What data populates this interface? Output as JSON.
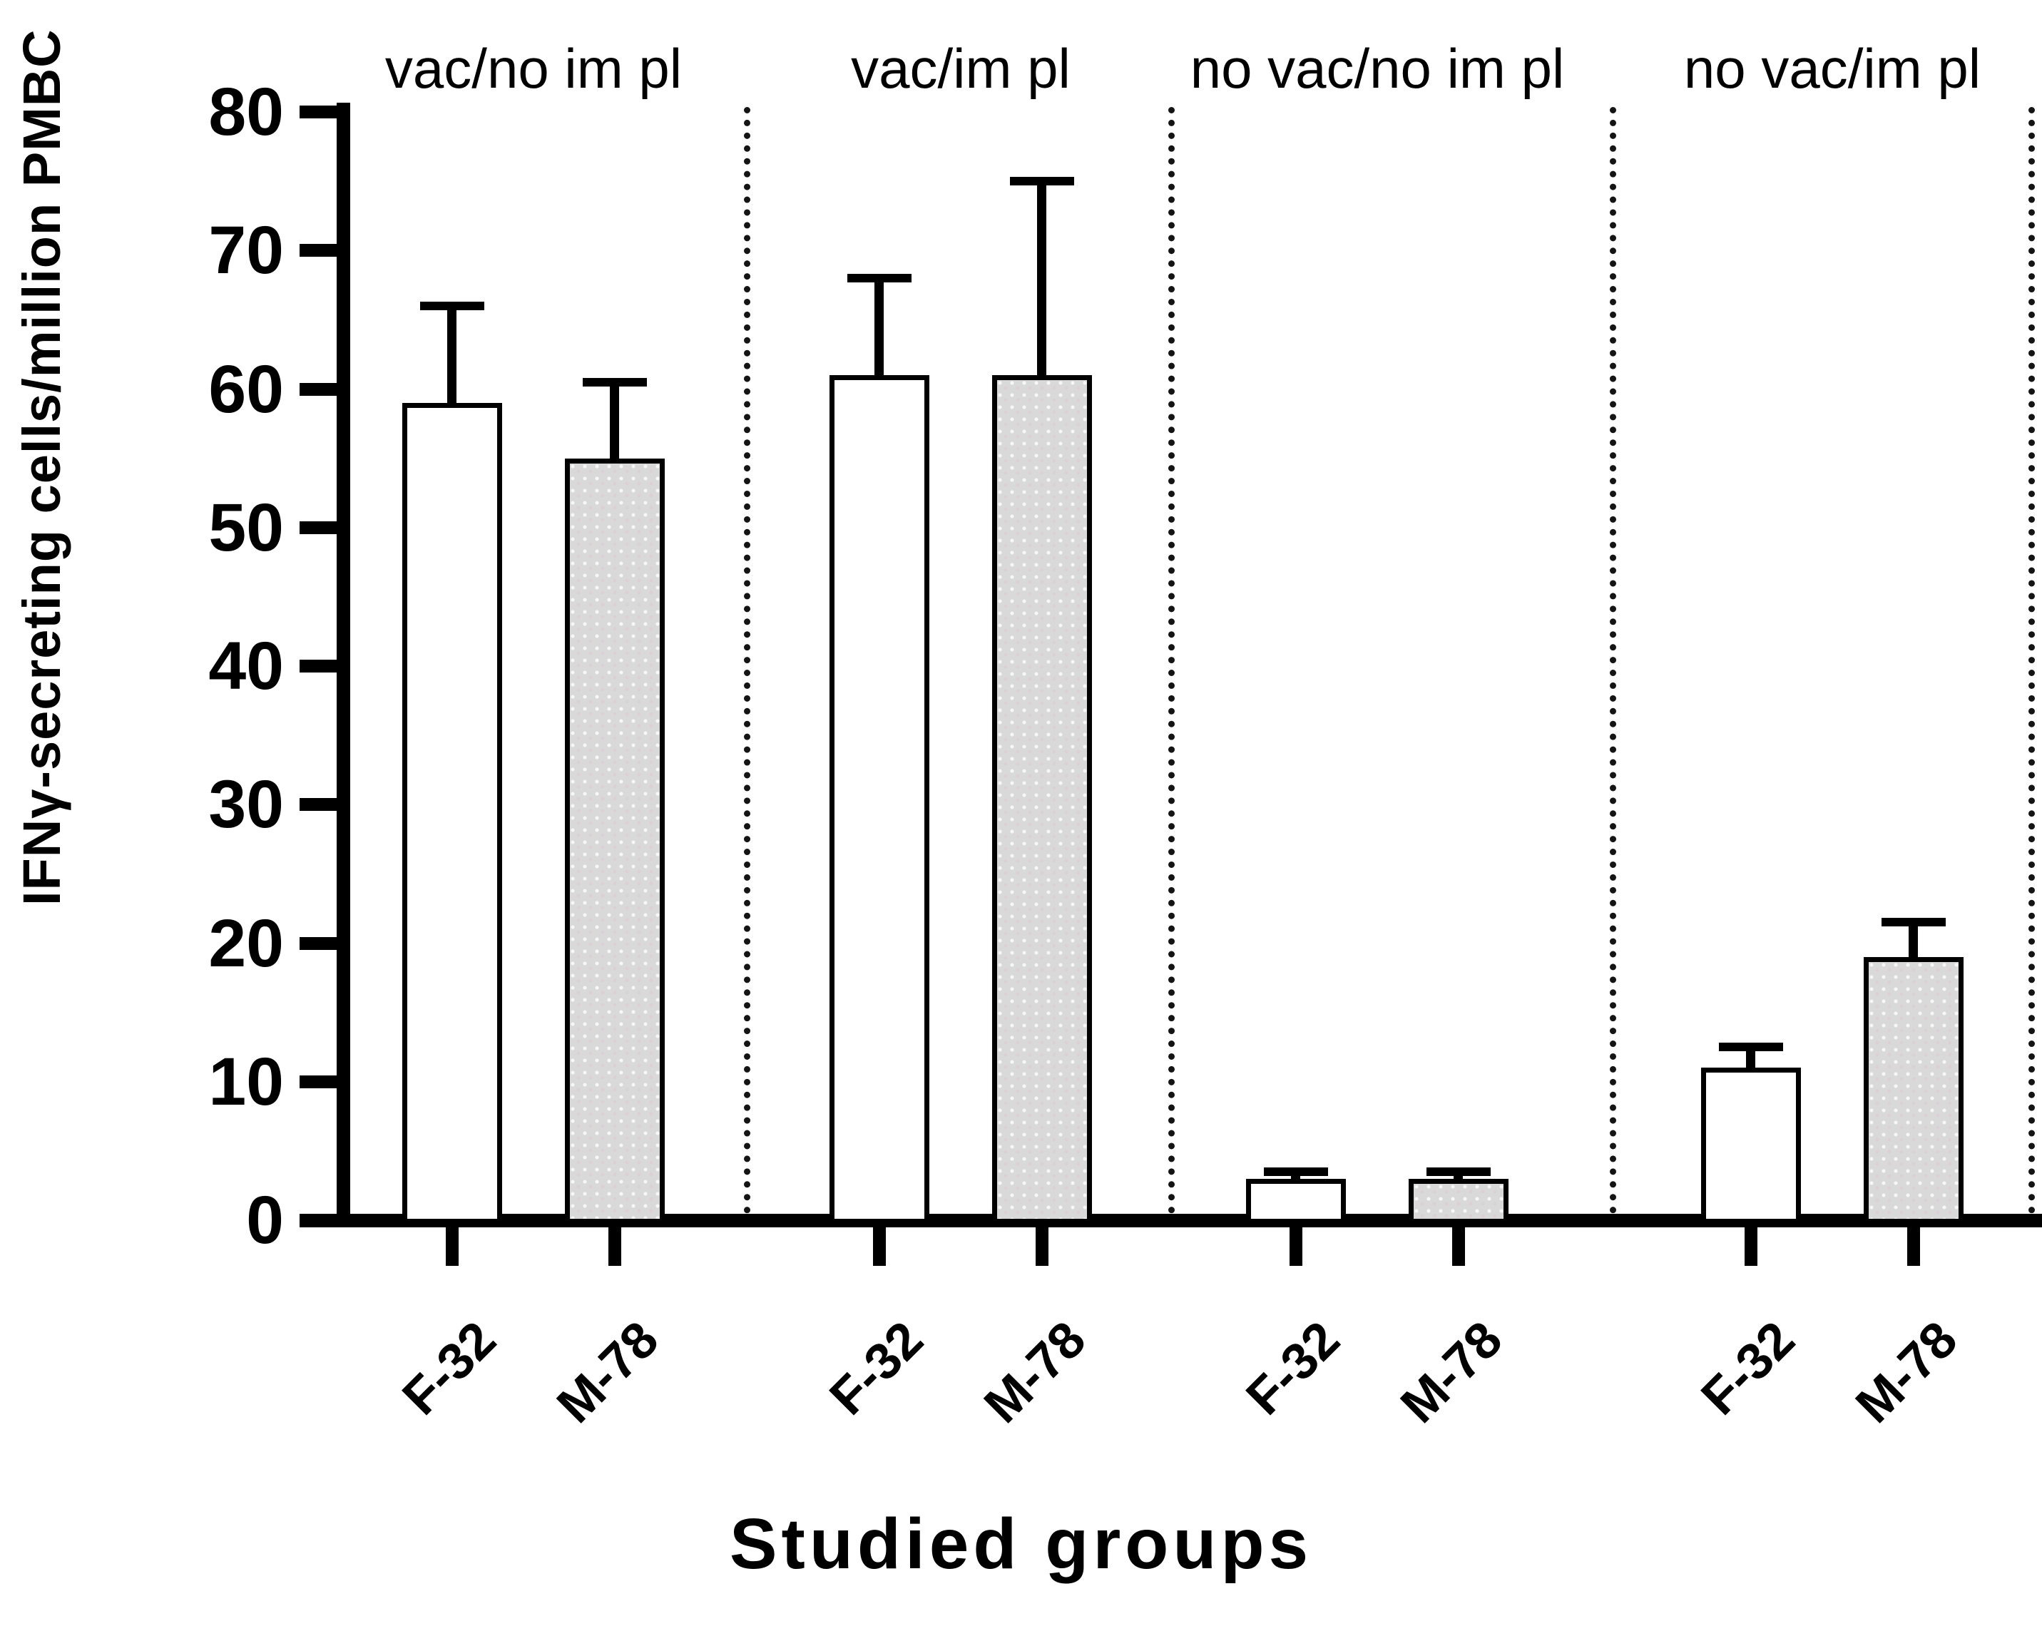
{
  "figure": {
    "background": "#ffffff"
  },
  "chart_data": {
    "type": "bar",
    "title": "",
    "xlabel": "Studied groups",
    "ylabel": "IFNγ-secreting cells/million PMBC",
    "ylim": [
      0,
      80
    ],
    "ytick_step": 10,
    "ytick_labels": [
      "0",
      "10",
      "20",
      "30",
      "40",
      "50",
      "60",
      "70",
      "80"
    ],
    "grid": false,
    "legend": "none",
    "error_bars": "plus-SD-caps",
    "separator_style": "dotted-vertical-lines-between-groups",
    "series_fills": {
      "F-32": "#ffffff",
      "M-78": "#d9d9d9"
    },
    "bar_outline": "#000000",
    "groups": [
      {
        "label": "vac/no im pl",
        "bars": [
          {
            "series": "F-32",
            "value": 59,
            "error_plus": 7
          },
          {
            "series": "M-78",
            "value": 55,
            "error_plus": 5.5
          }
        ]
      },
      {
        "label": "vac/im pl",
        "bars": [
          {
            "series": "F-32",
            "value": 61,
            "error_plus": 7
          },
          {
            "series": "M-78",
            "value": 61,
            "error_plus": 14
          }
        ]
      },
      {
        "label": "no vac/no im pl",
        "bars": [
          {
            "series": "F-32",
            "value": 3,
            "error_plus": 0.5
          },
          {
            "series": "M-78",
            "value": 3,
            "error_plus": 0.5
          }
        ]
      },
      {
        "label": "no vac/im pl",
        "bars": [
          {
            "series": "F-32",
            "value": 11,
            "error_plus": 1.5
          },
          {
            "series": "M-78",
            "value": 19,
            "error_plus": 2.5
          }
        ]
      }
    ]
  }
}
